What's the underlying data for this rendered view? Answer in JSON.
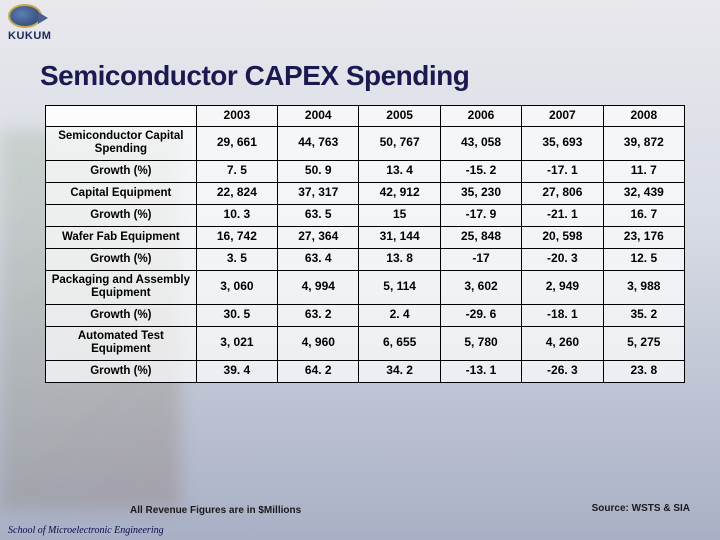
{
  "logo": {
    "text": "KUKUM"
  },
  "title": "Semiconductor CAPEX Spending",
  "table": {
    "years": [
      "2003",
      "2004",
      "2005",
      "2006",
      "2007",
      "2008"
    ],
    "rows": [
      {
        "label": "Semiconductor Capital Spending",
        "tall": true,
        "cells": [
          "29, 661",
          "44, 763",
          "50, 767",
          "43, 058",
          "35, 693",
          "39, 872"
        ]
      },
      {
        "label": "Growth (%)",
        "tall": false,
        "cells": [
          "7. 5",
          "50. 9",
          "13. 4",
          "-15. 2",
          "-17. 1",
          "11. 7"
        ]
      },
      {
        "label": "Capital Equipment",
        "tall": false,
        "cells": [
          "22, 824",
          "37, 317",
          "42, 912",
          "35, 230",
          "27, 806",
          "32, 439"
        ]
      },
      {
        "label": "Growth (%)",
        "tall": false,
        "cells": [
          "10. 3",
          "63. 5",
          "15",
          "-17. 9",
          "-21. 1",
          "16. 7"
        ]
      },
      {
        "label": "Wafer Fab Equipment",
        "tall": false,
        "cells": [
          "16, 742",
          "27, 364",
          "31, 144",
          "25, 848",
          "20, 598",
          "23, 176"
        ]
      },
      {
        "label": "Growth (%)",
        "tall": false,
        "cells": [
          "3. 5",
          "63. 4",
          "13. 8",
          "-17",
          "-20. 3",
          "12. 5"
        ]
      },
      {
        "label": "Packaging and Assembly Equipment",
        "tall": true,
        "cells": [
          "3, 060",
          "4, 994",
          "5, 114",
          "3, 602",
          "2, 949",
          "3, 988"
        ]
      },
      {
        "label": "Growth (%)",
        "tall": false,
        "cells": [
          "30. 5",
          "63. 2",
          "2. 4",
          "-29. 6",
          "-18. 1",
          "35. 2"
        ]
      },
      {
        "label": "Automated Test Equipment",
        "tall": true,
        "cells": [
          "3, 021",
          "4, 960",
          "6, 655",
          "5, 780",
          "4, 260",
          "5, 275"
        ]
      },
      {
        "label": "Growth (%)",
        "tall": false,
        "cells": [
          "39. 4",
          "64. 2",
          "34. 2",
          "-13. 1",
          "-26. 3",
          "23. 8"
        ]
      }
    ]
  },
  "note": "All Revenue Figures are in $Millions",
  "source": "Source: WSTS & SIA",
  "footer": "School of Microelectronic Engineering",
  "colors": {
    "title": "#1a1a50",
    "border": "#000000",
    "bg_top": "#e8e8ed",
    "bg_bottom": "#a8b0c5"
  },
  "fonts": {
    "title_size_pt": 21,
    "cell_size_pt": 9,
    "note_size_pt": 7.5
  }
}
